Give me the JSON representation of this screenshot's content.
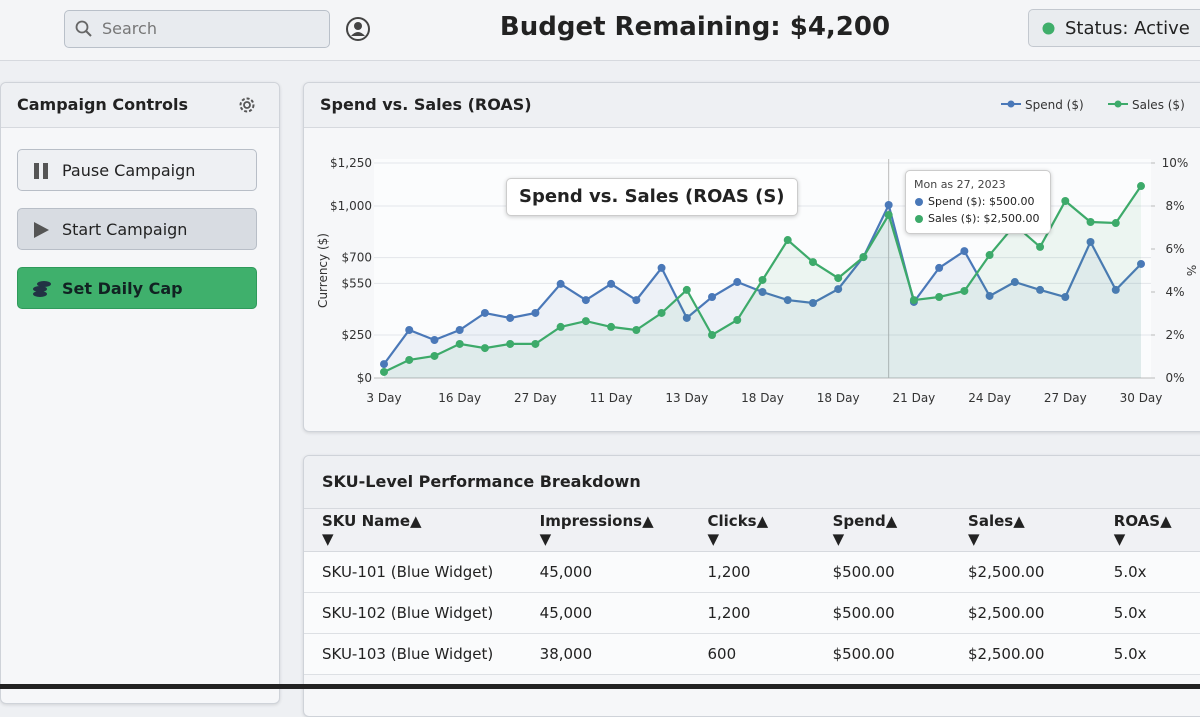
{
  "header": {
    "search_placeholder": "Search",
    "budget": "Budget Remaining: $4,200",
    "status": "Status: Active"
  },
  "sidebar": {
    "title": "Campaign Controls",
    "buttons": [
      "Pause Campaign",
      "Start Campaign",
      "Set Daily Cap"
    ]
  },
  "chart_panel": {
    "annotation": "Spend vs. Sales (ROAS (S)",
    "tooltip": {
      "date": "Mon as 27, 2023",
      "lines": [
        "Spend ($): $500.00",
        "Sales ($): $2,500.00"
      ]
    }
  },
  "chart_data": {
    "type": "line",
    "title": "Spend vs. Sales (ROAS)",
    "y_label": "Currency ($)",
    "y2_label": "%",
    "categories": [
      "3 Day",
      null,
      null,
      "16 Day",
      null,
      null,
      "27 Day",
      null,
      null,
      "11 Day",
      null,
      null,
      "13 Day",
      null,
      null,
      "18 Day",
      null,
      null,
      "18 Day",
      null,
      null,
      "21 Day",
      null,
      null,
      "24 Day",
      null,
      null,
      "27 Day",
      null,
      null,
      "30 Day"
    ],
    "series": [
      {
        "name": "Spend ($)",
        "color": "#4a78b8",
        "values": [
          81,
          279,
          221,
          279,
          378,
          349,
          378,
          547,
          453,
          547,
          453,
          640,
          349,
          471,
          558,
          500,
          453,
          436,
          517,
          703,
          1006,
          442,
          640,
          738,
          477,
          558,
          512,
          471,
          791,
          512,
          663
        ]
      },
      {
        "name": "Sales ($)",
        "color": "#3daa6a",
        "values": [
          35,
          105,
          128,
          198,
          174,
          198,
          198,
          297,
          331,
          297,
          279,
          378,
          512,
          250,
          337,
          570,
          802,
          674,
          581,
          703,
          948,
          453,
          471,
          506,
          715,
          890,
          762,
          1029,
          907,
          901,
          1116
        ]
      }
    ],
    "ylim": [
      0,
      1250
    ],
    "yticks": [
      {
        "value": 0,
        "label": "$0"
      },
      {
        "value": 250,
        "label": "$250"
      },
      {
        "value": 550,
        "label": "$550"
      },
      {
        "value": 700,
        "label": "$700"
      },
      {
        "value": 1000,
        "label": "$1,000"
      },
      {
        "value": 1250,
        "label": "$1,250"
      }
    ],
    "y2lim": [
      0,
      10
    ],
    "y2ticks": [
      {
        "value": 0,
        "label": "0%"
      },
      {
        "value": 2,
        "label": "2%"
      },
      {
        "value": 4,
        "label": "4%"
      },
      {
        "value": 6,
        "label": "6%"
      },
      {
        "value": 8,
        "label": "8%"
      },
      {
        "value": 10,
        "label": "10%"
      }
    ],
    "grid": true,
    "legend": "top-right"
  },
  "table": {
    "title": "SKU-Level Performance Breakdown",
    "columns": [
      "SKU Name",
      "Impressions",
      "Clicks",
      "Spend",
      "Sales",
      "ROAS"
    ],
    "rows": [
      [
        "SKU-101 (Blue Widget)",
        "45,000",
        "1,200",
        "$500.00",
        "$2,500.00",
        "5.0x"
      ],
      [
        "SKU-102 (Blue Widget)",
        "45,000",
        "1,200",
        "$500.00",
        "$2,500.00",
        "5.0x"
      ],
      [
        "SKU-103 (Blue Widget)",
        "38,000",
        "600",
        "$500.00",
        "$2,500.00",
        "5.0x"
      ]
    ]
  }
}
